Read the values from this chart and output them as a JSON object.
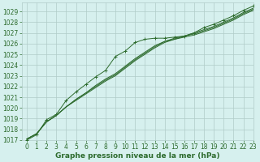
{
  "xlabel": "Graphe pression niveau de la mer (hPa)",
  "bg_color": "#d6f0ee",
  "grid_color": "#b0ccc8",
  "line_color": "#2d6b2d",
  "xlim": [
    -0.5,
    23
  ],
  "ylim": [
    1017,
    1029.8
  ],
  "yticks": [
    1017,
    1018,
    1019,
    1020,
    1021,
    1022,
    1023,
    1024,
    1025,
    1026,
    1027,
    1028,
    1029
  ],
  "xticks": [
    0,
    1,
    2,
    3,
    4,
    5,
    6,
    7,
    8,
    9,
    10,
    11,
    12,
    13,
    14,
    15,
    16,
    17,
    18,
    19,
    20,
    21,
    22,
    23
  ],
  "series_plain": [
    [
      1017.1,
      1017.6,
      1018.7,
      1019.3,
      1020.1,
      1020.7,
      1021.3,
      1021.9,
      1022.5,
      1023.0,
      1023.7,
      1024.4,
      1025.0,
      1025.6,
      1026.1,
      1026.4,
      1026.6,
      1026.8,
      1027.1,
      1027.4,
      1027.8,
      1028.2,
      1028.7,
      1029.1
    ],
    [
      1017.1,
      1017.6,
      1018.7,
      1019.3,
      1020.1,
      1020.8,
      1021.4,
      1022.0,
      1022.6,
      1023.1,
      1023.8,
      1024.5,
      1025.1,
      1025.7,
      1026.2,
      1026.4,
      1026.7,
      1026.9,
      1027.2,
      1027.5,
      1027.9,
      1028.3,
      1028.8,
      1029.2
    ],
    [
      1017.1,
      1017.6,
      1018.7,
      1019.3,
      1020.1,
      1020.8,
      1021.4,
      1022.1,
      1022.7,
      1023.2,
      1023.9,
      1024.6,
      1025.2,
      1025.8,
      1026.2,
      1026.5,
      1026.7,
      1027.0,
      1027.3,
      1027.6,
      1028.0,
      1028.4,
      1028.9,
      1029.3
    ]
  ],
  "series_marker": [
    1017.0,
    1017.5,
    1018.9,
    1019.4,
    1020.7,
    1021.5,
    1022.2,
    1022.9,
    1023.5,
    1024.8,
    1025.3,
    1026.1,
    1026.4,
    1026.5,
    1026.5,
    1026.6,
    1026.7,
    1027.0,
    1027.5,
    1027.8,
    1028.2,
    1028.6,
    1029.1,
    1029.5
  ],
  "font_color": "#2d6b2d",
  "tick_fontsize": 5.5,
  "xlabel_fontsize": 6.5
}
